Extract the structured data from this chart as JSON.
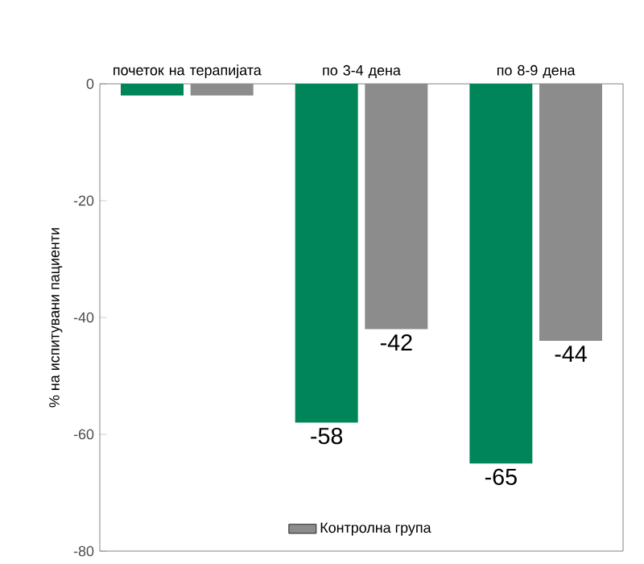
{
  "chart_data": {
    "type": "bar",
    "ylabel": "% на испитувани пациенти",
    "categories": [
      "почеток на терапијата",
      "по 3-4 дена",
      "по 8-9 дена"
    ],
    "series": [
      {
        "color": "#00855a",
        "values": [
          -2,
          -58,
          -65
        ],
        "value_labels": [
          null,
          "-58",
          "-65"
        ]
      },
      {
        "name": "Контролна група",
        "color": "#8c8c8c",
        "values": [
          -2,
          -42,
          -44
        ],
        "value_labels": [
          null,
          "-42",
          "-44"
        ]
      }
    ],
    "ylim": [
      -80,
      0
    ],
    "yticks": [
      0,
      -20,
      -40,
      -60,
      -80
    ],
    "grid": false,
    "legend": "bottom"
  }
}
